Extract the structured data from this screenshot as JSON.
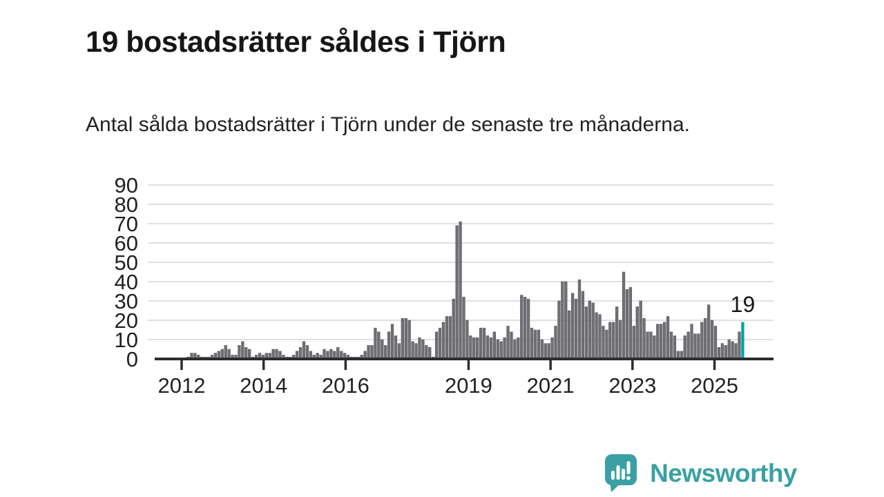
{
  "header": {
    "title": "19 bostadsrätter såldes i Tjörn",
    "subtitle": "Antal sålda bostadsrätter i Tjörn under de senaste tre månaderna."
  },
  "footer": {
    "brand": "Newsworthy"
  },
  "colors": {
    "bar": "#6f6f74",
    "bar_outline": "#5c5c61",
    "highlight": "#00a2a2",
    "grid": "#e0e0e0",
    "axis": "#2d2d30",
    "text": "#212121",
    "title_text": "#161616",
    "brand": "#3aa0a4"
  },
  "chart_data": {
    "type": "bar",
    "title": "19 bostadsrätter såldes i Tjörn",
    "subtitle": "Antal sålda bostadsrätter i Tjörn under de senaste tre månaderna.",
    "xlabel": "",
    "ylabel": "",
    "x_unit": "month",
    "grid": "horizontal",
    "ylim": [
      0,
      90
    ],
    "y_ticks": [
      0,
      10,
      20,
      30,
      40,
      50,
      60,
      70,
      80,
      90
    ],
    "x_tick_labels": [
      "2012",
      "2014",
      "2016",
      "2019",
      "2021",
      "2023",
      "2025"
    ],
    "x_tick_years": [
      2012,
      2014,
      2016,
      2019,
      2021,
      2023,
      2025
    ],
    "values": [
      1,
      3,
      3,
      2,
      1,
      1,
      1,
      2,
      3,
      4,
      5,
      7,
      5,
      2,
      2,
      7,
      9,
      6,
      5,
      1,
      2,
      3,
      2,
      3,
      3,
      5,
      5,
      4,
      2,
      1,
      1,
      2,
      4,
      6,
      9,
      7,
      4,
      2,
      3,
      2,
      5,
      4,
      5,
      4,
      6,
      4,
      3,
      2,
      1,
      1,
      1,
      2,
      4,
      7,
      7,
      16,
      14,
      10,
      7,
      14,
      18,
      12,
      8,
      21,
      21,
      20,
      9,
      8,
      11,
      10,
      7,
      6,
      1,
      14,
      16,
      19,
      22,
      22,
      31,
      69,
      71,
      32,
      20,
      12,
      11,
      11,
      16,
      16,
      12,
      11,
      14,
      10,
      9,
      11,
      17,
      14,
      10,
      11,
      33,
      32,
      31,
      16,
      15,
      15,
      10,
      8,
      8,
      11,
      17,
      30,
      40,
      40,
      25,
      34,
      31,
      41,
      35,
      27,
      30,
      29,
      24,
      23,
      17,
      15,
      19,
      19,
      27,
      20,
      45,
      36,
      37,
      17,
      27,
      30,
      21,
      14,
      14,
      12,
      18,
      18,
      19,
      22,
      14,
      12,
      4,
      4,
      12,
      14,
      18,
      13,
      13,
      19,
      21,
      28,
      20,
      17,
      6,
      8,
      7,
      10,
      9,
      8,
      14,
      19
    ],
    "highlight_last": true,
    "highlight_label": "19"
  }
}
